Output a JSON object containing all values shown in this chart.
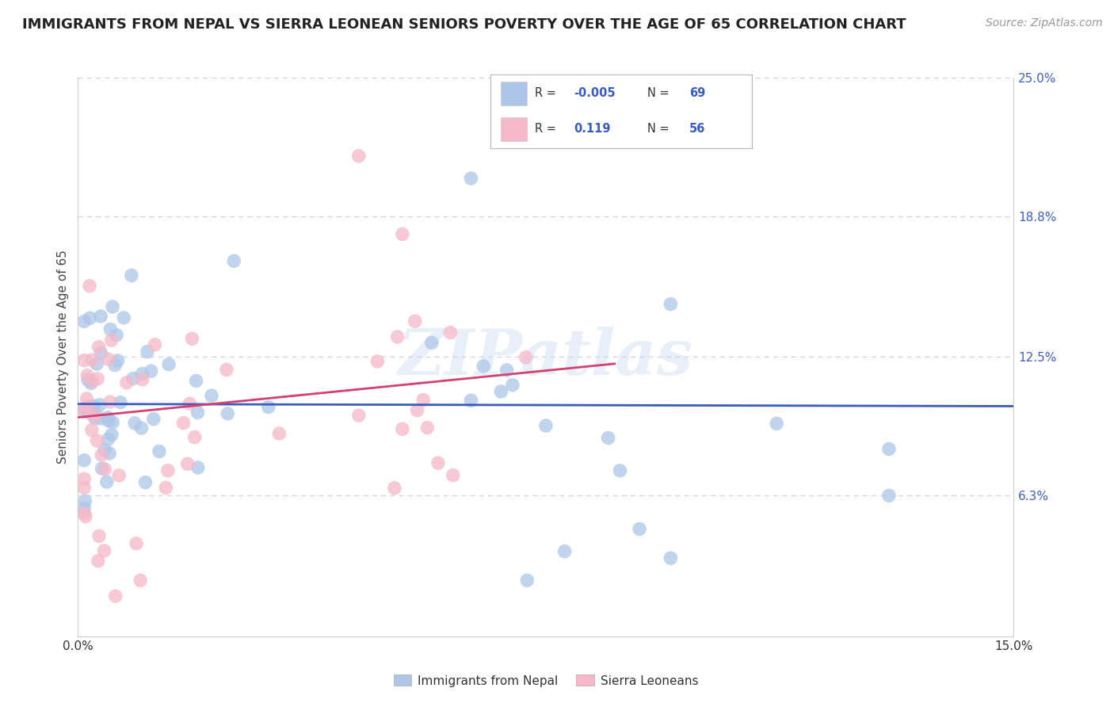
{
  "title": "IMMIGRANTS FROM NEPAL VS SIERRA LEONEAN SENIORS POVERTY OVER THE AGE OF 65 CORRELATION CHART",
  "source": "Source: ZipAtlas.com",
  "ylabel": "Seniors Poverty Over the Age of 65",
  "xlim": [
    0.0,
    0.15
  ],
  "ylim": [
    0.0,
    0.25
  ],
  "yticks": [
    0.063,
    0.125,
    0.188,
    0.25
  ],
  "ytick_labels": [
    "6.3%",
    "12.5%",
    "18.8%",
    "25.0%"
  ],
  "xticks": [
    0.0,
    0.03,
    0.06,
    0.09,
    0.12,
    0.15
  ],
  "xtick_labels": [
    "0.0%",
    "",
    "",
    "",
    "",
    "15.0%"
  ],
  "color_blue": "#adc6e8",
  "color_pink": "#f5b8c8",
  "color_blue_line": "#3a5bbf",
  "color_pink_line": "#d44070",
  "color_grid": "#c8d4e8",
  "watermark": "ZIPatlas",
  "background_color": "#ffffff",
  "title_fontsize": 13,
  "axis_fontsize": 11,
  "tick_fontsize": 11,
  "source_fontsize": 10,
  "legend_blue_r": "-0.005",
  "legend_blue_n": "69",
  "legend_pink_r": "0.119",
  "legend_pink_n": "56"
}
